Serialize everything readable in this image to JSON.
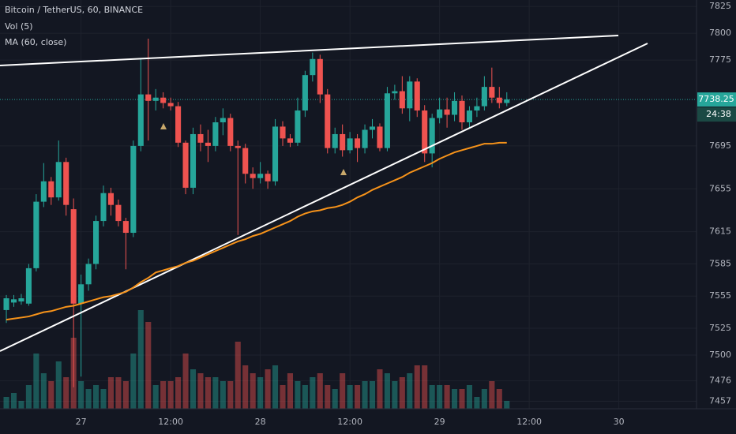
{
  "chart_data": {
    "type": "candlestick",
    "title": "Bitcoin / TetherUS, 60, BINANCE",
    "volume_name": "Vol (5)",
    "categories": [
      null,
      null,
      null,
      null,
      null,
      null,
      null,
      null,
      null,
      null,
      null,
      null,
      null,
      null,
      null,
      null,
      null,
      null,
      null,
      null,
      null,
      null,
      null,
      null,
      null,
      null,
      null,
      null,
      null,
      null,
      null,
      null,
      null,
      null,
      null,
      null,
      null,
      null,
      null,
      null,
      null,
      null,
      null,
      null,
      null,
      null,
      null,
      null,
      null,
      null,
      null,
      null,
      null,
      null,
      null,
      null,
      null,
      null,
      null,
      null,
      null,
      null,
      null,
      null,
      null,
      null,
      null,
      null
    ],
    "open": [
      7542,
      7549,
      7550,
      7548,
      7581,
      7643,
      7662,
      7647,
      7680,
      7636,
      7548,
      7566,
      7585,
      7625,
      7651,
      7640,
      7625,
      7614,
      7695,
      7743,
      7737,
      7740,
      7735,
      7732,
      7698,
      7656,
      7706,
      7698,
      7695,
      7717,
      7721,
      7695,
      7693,
      7669,
      7665,
      7669,
      7662,
      7713,
      7702,
      7698,
      7728,
      7761,
      7776,
      7743,
      7693,
      7706,
      7691,
      7702,
      7693,
      7710,
      7713,
      7693,
      7744,
      7746,
      7730,
      7755,
      7728,
      7688,
      7721,
      7729,
      7724,
      7737,
      7717,
      7728,
      7732,
      7750,
      7740,
      7735
    ],
    "high": [
      7556,
      7556,
      7557,
      7585,
      7650,
      7679,
      7666,
      7700,
      7684,
      7646,
      7575,
      7590,
      7630,
      7658,
      7656,
      7645,
      7628,
      7700,
      7776,
      7795,
      7748,
      7745,
      7740,
      7736,
      7700,
      7712,
      7715,
      7710,
      7722,
      7730,
      7725,
      7700,
      7697,
      7675,
      7680,
      7672,
      7720,
      7718,
      7706,
      7740,
      7765,
      7782,
      7780,
      7748,
      7712,
      7715,
      7708,
      7706,
      7715,
      7720,
      7716,
      7750,
      7752,
      7760,
      7760,
      7758,
      7733,
      7725,
      7740,
      7740,
      7745,
      7742,
      7732,
      7740,
      7760,
      7768,
      7750,
      7745
    ],
    "low": [
      7530,
      7545,
      7547,
      7546,
      7578,
      7638,
      7640,
      7644,
      7630,
      7470,
      7480,
      7560,
      7580,
      7620,
      7630,
      7620,
      7580,
      7610,
      7690,
      7700,
      7728,
      7730,
      7728,
      7694,
      7650,
      7650,
      7690,
      7680,
      7690,
      7705,
      7690,
      7612,
      7660,
      7655,
      7660,
      7655,
      7658,
      7695,
      7694,
      7695,
      7722,
      7755,
      7735,
      7688,
      7688,
      7685,
      7688,
      7680,
      7688,
      7702,
      7690,
      7690,
      7738,
      7725,
      7718,
      7722,
      7680,
      7675,
      7716,
      7712,
      7718,
      7710,
      7712,
      7722,
      7728,
      7735,
      7730,
      7732
    ],
    "close": [
      7553,
      7552,
      7553,
      7581,
      7643,
      7662,
      7647,
      7680,
      7640,
      7548,
      7566,
      7585,
      7625,
      7651,
      7640,
      7625,
      7614,
      7695,
      7743,
      7737,
      7740,
      7735,
      7732,
      7698,
      7656,
      7706,
      7698,
      7695,
      7717,
      7721,
      7695,
      7693,
      7669,
      7665,
      7669,
      7662,
      7713,
      7702,
      7698,
      7728,
      7761,
      7776,
      7743,
      7693,
      7706,
      7691,
      7702,
      7693,
      7710,
      7713,
      7693,
      7744,
      7746,
      7730,
      7755,
      7728,
      7688,
      7721,
      7729,
      7724,
      7737,
      7717,
      7728,
      7732,
      7750,
      7740,
      7735,
      7738.25
    ],
    "volume": [
      15,
      20,
      10,
      30,
      70,
      45,
      35,
      60,
      40,
      90,
      35,
      25,
      30,
      25,
      40,
      40,
      35,
      70,
      125,
      110,
      30,
      35,
      35,
      40,
      70,
      50,
      45,
      40,
      40,
      35,
      35,
      85,
      55,
      45,
      40,
      50,
      55,
      30,
      45,
      35,
      30,
      40,
      45,
      30,
      25,
      45,
      30,
      30,
      35,
      35,
      50,
      45,
      35,
      40,
      45,
      55,
      55,
      30,
      30,
      30,
      25,
      25,
      30,
      15,
      25,
      35,
      25,
      10
    ],
    "ma": {
      "name": "MA (60, close)",
      "color": "#f7931a",
      "values": [
        7533,
        7534,
        7535,
        7536,
        7538,
        7540,
        7541,
        7543,
        7545,
        7546,
        7548,
        7550,
        7552,
        7554,
        7555,
        7557,
        7559,
        7563,
        7568,
        7572,
        7577,
        7579,
        7581,
        7583,
        7586,
        7588,
        7591,
        7594,
        7597,
        7600,
        7603,
        7606,
        7608,
        7611,
        7613,
        7616,
        7619,
        7622,
        7625,
        7629,
        7632,
        7634,
        7635,
        7637,
        7638,
        7640,
        7643,
        7647,
        7650,
        7654,
        7657,
        7660,
        7663,
        7666,
        7670,
        7673,
        7676,
        7679,
        7683,
        7686,
        7689,
        7691,
        7693,
        7695,
        7697,
        7697,
        7698,
        7698
      ]
    },
    "up_color": "#26a69a",
    "down_color": "#ef5350",
    "ylim": [
      7450,
      7831
    ],
    "yticks": [
      7457,
      7476,
      7500,
      7525,
      7555,
      7585,
      7615,
      7655,
      7695,
      7775,
      7800,
      7825
    ],
    "xlim": [
      -0.85,
      92.4
    ],
    "xticks": [
      {
        "value": 10,
        "label": "27"
      },
      {
        "value": 22,
        "label": "12:00"
      },
      {
        "value": 34,
        "label": "28"
      },
      {
        "value": 46,
        "label": "12:00"
      },
      {
        "value": 58,
        "label": "29"
      },
      {
        "value": 70,
        "label": "12:00"
      },
      {
        "value": 82,
        "label": "30"
      }
    ],
    "grid": true,
    "last_price": 7738.25,
    "countdown": "24:38"
  }
}
